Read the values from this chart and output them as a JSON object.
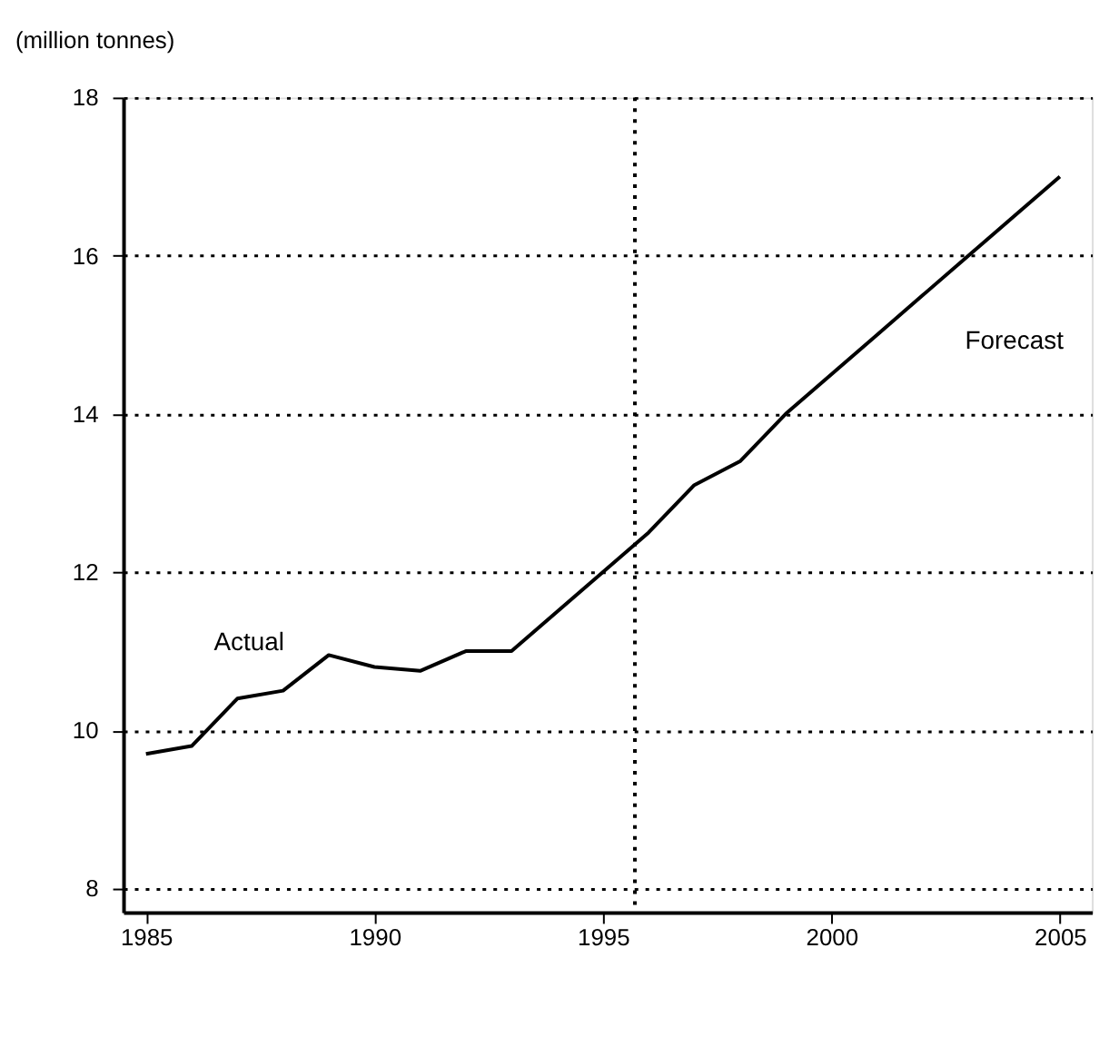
{
  "chart_data": {
    "type": "line",
    "ylabel": "(million tonnes)",
    "x": [
      1985,
      1986,
      1987,
      1988,
      1989,
      1990,
      1991,
      1992,
      1993,
      1994,
      1995,
      1996,
      1997,
      1998,
      1999,
      2000,
      2001,
      2002,
      2003,
      2004,
      2005
    ],
    "series": [
      {
        "color": "#000000",
        "values": [
          9.7,
          9.8,
          10.4,
          10.5,
          10.95,
          10.8,
          10.75,
          11.0,
          11.0,
          11.5,
          12.0,
          12.5,
          13.1,
          13.4,
          14.0,
          14.5,
          15.0,
          15.5,
          16.0,
          16.5,
          17.0
        ]
      }
    ],
    "xlim": [
      1984.5,
      2005.7
    ],
    "xticks": [
      1985,
      1990,
      1995,
      2000,
      2005
    ],
    "ylim": [
      7.7,
      18
    ],
    "yticks": [
      8,
      10,
      12,
      14,
      16,
      18
    ],
    "grid": "y",
    "line_style": "solid",
    "ref_lines": [
      {
        "axis": "x",
        "value": 1995.7,
        "line_style": "dotted"
      }
    ],
    "annotations": [
      "Actual",
      "Forecast"
    ]
  }
}
